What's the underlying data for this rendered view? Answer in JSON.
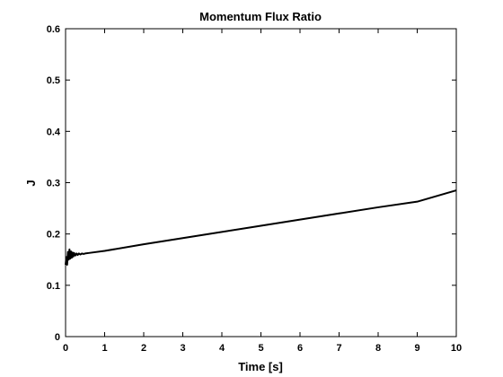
{
  "chart_data": {
    "type": "line",
    "title": "Momentum Flux Ratio",
    "xlabel": "Time [s]",
    "ylabel": "J",
    "xlim": [
      0,
      10
    ],
    "ylim": [
      0,
      0.6
    ],
    "xticks": [
      0,
      1,
      2,
      3,
      4,
      5,
      6,
      7,
      8,
      9,
      10
    ],
    "yticks": [
      0,
      0.1,
      0.2,
      0.3,
      0.4,
      0.5,
      0.6
    ],
    "xtick_labels": [
      "0",
      "1",
      "2",
      "3",
      "4",
      "5",
      "6",
      "7",
      "8",
      "9",
      "10"
    ],
    "ytick_labels": [
      "0",
      "0.1",
      "0.2",
      "0.3",
      "0.4",
      "0.5",
      "0.6"
    ],
    "grid": false,
    "line_color": "#000000",
    "series": [
      {
        "x": [
          0,
          0.02,
          0.04,
          0.06,
          0.08,
          0.1,
          0.12,
          0.14,
          0.16,
          0.18,
          0.2,
          0.22,
          0.25,
          0.28,
          0.31,
          0.34,
          0.38,
          0.42,
          0.46,
          0.5,
          0.6,
          1,
          2,
          3,
          4,
          5,
          6,
          7,
          8,
          9,
          10
        ],
        "y": [
          0.14,
          0.155,
          0.14,
          0.165,
          0.15,
          0.17,
          0.152,
          0.166,
          0.154,
          0.164,
          0.156,
          0.163,
          0.158,
          0.162,
          0.159,
          0.162,
          0.16,
          0.162,
          0.161,
          0.162,
          0.163,
          0.167,
          0.18,
          0.192,
          0.204,
          0.216,
          0.228,
          0.24,
          0.252,
          0.263,
          0.285
        ]
      }
    ]
  }
}
